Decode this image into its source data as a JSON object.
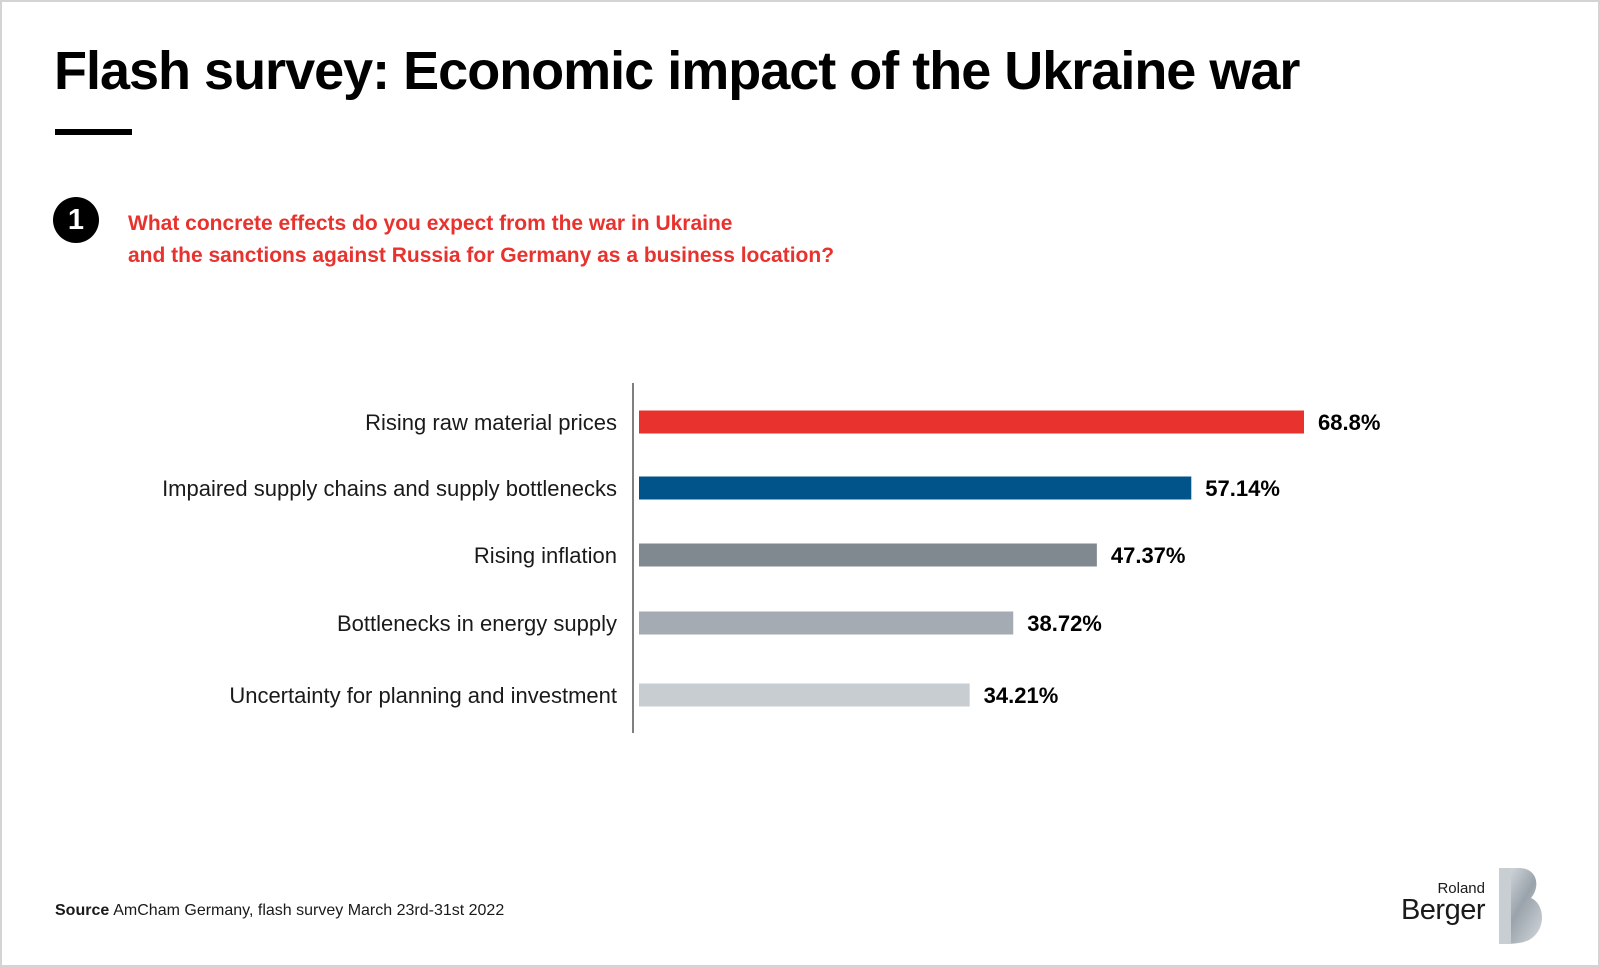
{
  "header": {
    "title": "Flash survey: Economic impact of the Ukraine war"
  },
  "question": {
    "number": "1",
    "line1": "What concrete effects do you expect from the war in Ukraine",
    "line2": "and the sanctions against Russia for Germany as a business location?"
  },
  "chart_data": {
    "type": "bar",
    "orientation": "horizontal",
    "categories": [
      "Rising raw material prices",
      "Impaired supply chains and supply bottlenecks",
      "Rising inflation",
      "Bottlenecks in energy supply",
      "Uncertainty for planning and investment"
    ],
    "values": [
      68.8,
      57.14,
      47.37,
      38.72,
      34.21
    ],
    "value_labels": [
      "68.8%",
      "57.14%",
      "47.37%",
      "38.72%",
      "34.21%"
    ],
    "bar_colors": [
      "#e8322e",
      "#00548a",
      "#808890",
      "#a4abb2",
      "#c8cdd2"
    ],
    "xlim": [
      0,
      100
    ],
    "grid": false,
    "legend": "none"
  },
  "footer": {
    "source_label": "Source",
    "source_text": "AmCham Germany, flash survey March 23rd-31st 2022"
  },
  "logo": {
    "line1": "Roland",
    "line2": "Berger"
  }
}
